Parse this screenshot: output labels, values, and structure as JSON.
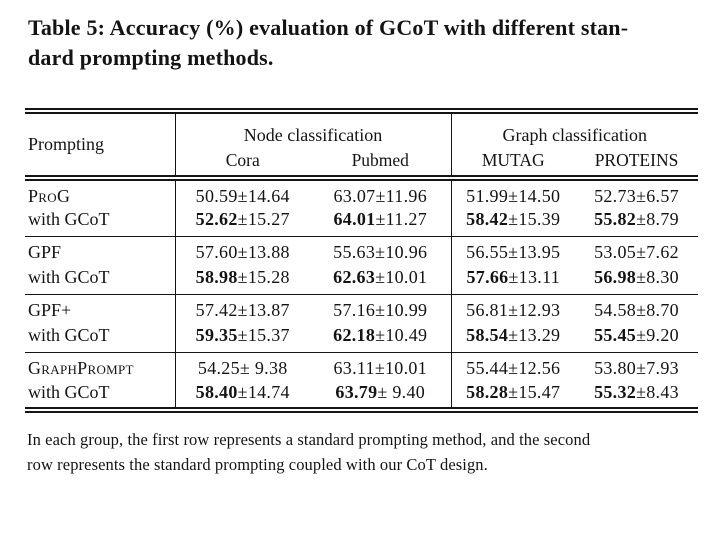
{
  "caption": {
    "line1": "Table 5: Accuracy (%) evaluation of GCoT with different stan-",
    "line2": "dard prompting methods."
  },
  "table": {
    "header": {
      "prompting": "Prompting",
      "node_group": "Node classification",
      "graph_group": "Graph classification",
      "cols": {
        "cora": "Cora",
        "pubmed": "Pubmed",
        "mutag": "MUTAG",
        "proteins": "PROTEINS"
      }
    },
    "rows": [
      {
        "method": "ProG",
        "cells": [
          {
            "m": "50.59",
            "s": "±14.64"
          },
          {
            "m": "63.07",
            "s": "±11.96"
          },
          {
            "m": "51.99",
            "s": "±14.50"
          },
          {
            "m": "52.73",
            "s": "±6.57"
          }
        ]
      },
      {
        "method": "with GCoT",
        "cells": [
          {
            "m": "52.62",
            "s": "±15.27"
          },
          {
            "m": "64.01",
            "s": "±11.27"
          },
          {
            "m": "58.42",
            "s": "±15.39"
          },
          {
            "m": "55.82",
            "s": "±8.79"
          }
        ]
      },
      {
        "method": "GPF",
        "cells": [
          {
            "m": "57.60",
            "s": "±13.88"
          },
          {
            "m": "55.63",
            "s": "±10.96"
          },
          {
            "m": "56.55",
            "s": "±13.95"
          },
          {
            "m": "53.05",
            "s": "±7.62"
          }
        ]
      },
      {
        "method": "with GCoT",
        "cells": [
          {
            "m": "58.98",
            "s": "±15.28"
          },
          {
            "m": "62.63",
            "s": "±10.01"
          },
          {
            "m": "57.66",
            "s": "±13.11"
          },
          {
            "m": "56.98",
            "s": "±8.30"
          }
        ]
      },
      {
        "method": "GPF+",
        "cells": [
          {
            "m": "57.42",
            "s": "±13.87"
          },
          {
            "m": "57.16",
            "s": "±10.99"
          },
          {
            "m": "56.81",
            "s": "±12.93"
          },
          {
            "m": "54.58",
            "s": "±8.70"
          }
        ]
      },
      {
        "method": "with GCoT",
        "cells": [
          {
            "m": "59.35",
            "s": "±15.37"
          },
          {
            "m": "62.18",
            "s": "±10.49"
          },
          {
            "m": "58.54",
            "s": "±13.29"
          },
          {
            "m": "55.45",
            "s": "±9.20"
          }
        ]
      },
      {
        "method": "GraphPrompt",
        "cells": [
          {
            "m": "54.25",
            "s": "± 9.38"
          },
          {
            "m": "63.11",
            "s": "±10.01"
          },
          {
            "m": "55.44",
            "s": "±12.56"
          },
          {
            "m": "53.80",
            "s": "±7.93"
          }
        ]
      },
      {
        "method": "with GCoT",
        "cells": [
          {
            "m": "58.40",
            "s": "±14.74"
          },
          {
            "m": "63.79",
            "s": "± 9.40"
          },
          {
            "m": "58.28",
            "s": "±15.47"
          },
          {
            "m": "55.32",
            "s": "±8.43"
          }
        ]
      }
    ]
  },
  "footnote": {
    "line1": "In each group, the first row represents a standard prompting method, and the second",
    "line2": "row represents the standard prompting coupled with our CoT design."
  },
  "colors": {
    "text": "#141414",
    "rule": "#141414",
    "background": "#ffffff"
  }
}
